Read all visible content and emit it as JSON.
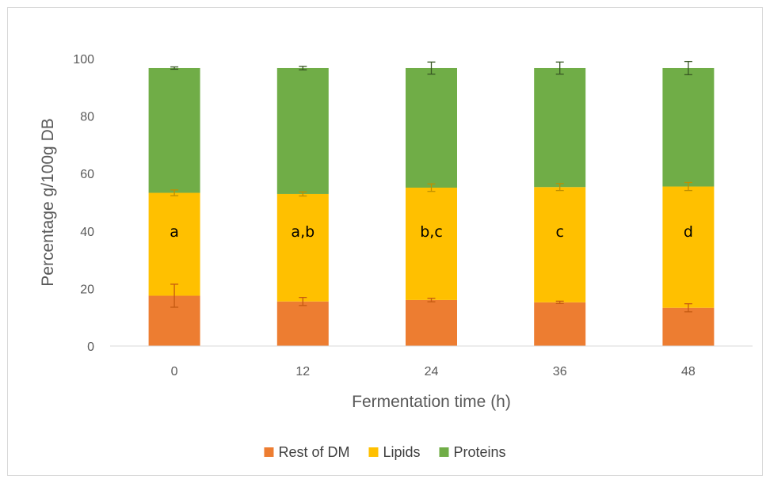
{
  "chart_data": {
    "type": "bar",
    "stacked": true,
    "categories": [
      "0",
      "12",
      "24",
      "36",
      "48"
    ],
    "series": [
      {
        "name": "Rest of DM",
        "color": "#ED7D31",
        "values": [
          17.5,
          15.5,
          16.0,
          15.2,
          13.3
        ],
        "errors": [
          4.0,
          1.4,
          0.6,
          0.4,
          1.4
        ],
        "error_color": "#C55A11"
      },
      {
        "name": "Lipids",
        "color": "#FFC000",
        "values": [
          35.8,
          37.4,
          39.1,
          40.1,
          42.2
        ],
        "errors": [
          1.0,
          0.7,
          1.3,
          1.2,
          1.4
        ],
        "error_color": "#BF8F00"
      },
      {
        "name": "Proteins",
        "color": "#70AD47",
        "values": [
          43.4,
          43.8,
          41.6,
          41.4,
          41.2
        ],
        "errors": [
          0.4,
          0.6,
          2.1,
          2.1,
          2.3
        ],
        "error_color": "#375623"
      }
    ],
    "annotations": [
      "a",
      "a,b",
      "b,c",
      "c",
      "d"
    ],
    "xlabel": "Fermentation time (h)",
    "ylabel": "Percentage g/100g DB",
    "ylim": [
      0,
      100
    ],
    "yticks": [
      0,
      20,
      40,
      60,
      80,
      100
    ],
    "grid": false,
    "legend": "bottom"
  }
}
